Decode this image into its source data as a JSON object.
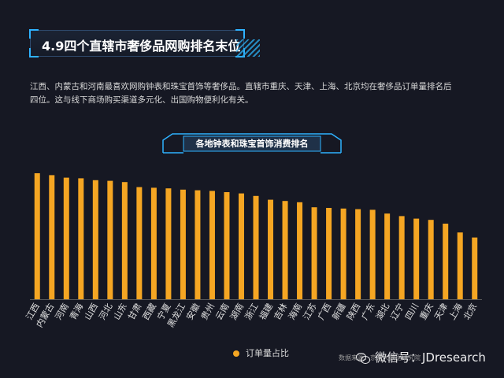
{
  "title": "4.9四个直辖市奢侈品网购排名末位",
  "description": "江西、内蒙古和河南最喜欢网购钟表和珠宝首饰等奢侈品。直辖市重庆、天津、上海、北京均在奢侈品订单量排名后四位。这与线下商场购买渠道多元化、出国购物便利化有关。",
  "colors": {
    "bar": "#f5a623",
    "accent": "#2fb2ff",
    "axis": "#5a5a5a",
    "background": "#161823"
  },
  "chart_data": {
    "type": "bar",
    "title": "各地钟表和珠宝首饰消费排名",
    "legend": "订单量占比",
    "legend_position": "bottom",
    "grid": false,
    "categories": [
      "江西",
      "内蒙古",
      "河南",
      "青海",
      "山西",
      "河北",
      "山东",
      "甘肃",
      "西藏",
      "宁夏",
      "黑龙江",
      "安徽",
      "贵州",
      "云南",
      "湖南",
      "浙江",
      "福建",
      "吉林",
      "海南",
      "江苏",
      "广西",
      "新疆",
      "陕西",
      "广东",
      "湖北",
      "辽宁",
      "四川",
      "重庆",
      "天津",
      "上海",
      "北京"
    ],
    "values": [
      100,
      98.5,
      96.5,
      96,
      94.5,
      94,
      93,
      89,
      88.5,
      88,
      87,
      86.5,
      86,
      85,
      84,
      82,
      79,
      78,
      77,
      73,
      72.5,
      72,
      71.5,
      71,
      68,
      66,
      64,
      63,
      60,
      53,
      49
    ],
    "ylim": [
      0,
      105
    ]
  },
  "source_note": "数据来源：京东大数据研究院",
  "watermark": "微信号：JDresearch"
}
